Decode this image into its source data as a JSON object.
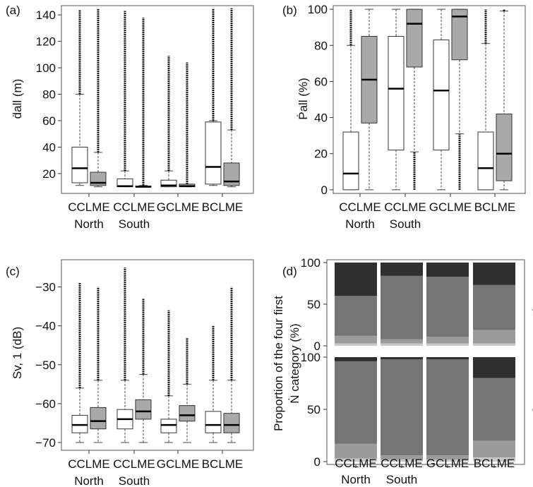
{
  "chart_data": [
    {
      "type": "box",
      "panel_label": "(a)",
      "ylabel": "ḋall (m)",
      "ylim": [
        5,
        147
      ],
      "yticks": [
        "20",
        "40",
        "60",
        "80",
        "100",
        "120",
        "140"
      ],
      "yticks_values": [
        20,
        40,
        60,
        80,
        100,
        120,
        140
      ],
      "categories": [
        [
          "CCLME",
          "North"
        ],
        [
          "CCLME",
          "South"
        ],
        [
          "GCLME",
          ""
        ],
        [
          "BCLME",
          ""
        ]
      ],
      "fills": [
        "#ffffff",
        "#a9a9a9"
      ],
      "boxes": [
        {
          "group": 0,
          "fill": 0,
          "min": 11,
          "q1": 13,
          "median": 24,
          "q3": 40,
          "max": 80,
          "outliers": [
            80,
            144
          ]
        },
        {
          "group": 0,
          "fill": 1,
          "min": 10,
          "q1": 11,
          "median": 13,
          "q3": 21,
          "max": 36,
          "outliers": [
            36,
            145
          ]
        },
        {
          "group": 1,
          "fill": 0,
          "min": 10,
          "q1": 10,
          "median": 10.5,
          "q3": 16,
          "max": 22,
          "outliers": [
            22,
            143
          ]
        },
        {
          "group": 1,
          "fill": 1,
          "min": 10,
          "q1": 10,
          "median": 10,
          "q3": 10.5,
          "max": 11,
          "outliers": [
            11,
            138
          ]
        },
        {
          "group": 2,
          "fill": 0,
          "min": 10,
          "q1": 10,
          "median": 11,
          "q3": 15,
          "max": 22,
          "outliers": [
            22,
            109
          ]
        },
        {
          "group": 2,
          "fill": 1,
          "min": 10,
          "q1": 10,
          "median": 10.5,
          "q3": 12,
          "max": 12,
          "outliers": [
            12,
            104
          ]
        },
        {
          "group": 3,
          "fill": 0,
          "min": 11,
          "q1": 12,
          "median": 25,
          "q3": 59,
          "max": 60,
          "outliers": [
            60,
            145
          ]
        },
        {
          "group": 3,
          "fill": 1,
          "min": 10,
          "q1": 11,
          "median": 14,
          "q3": 28,
          "max": 53,
          "outliers": [
            53,
            145
          ]
        }
      ]
    },
    {
      "type": "box",
      "panel_label": "(b)",
      "ylabel": "Ṗall (%)",
      "ylim": [
        -2,
        102
      ],
      "yticks": [
        "0",
        "20",
        "40",
        "60",
        "80",
        "100"
      ],
      "yticks_values": [
        0,
        20,
        40,
        60,
        80,
        100
      ],
      "categories": [
        [
          "CCLME",
          "North"
        ],
        [
          "CCLME",
          "South"
        ],
        [
          "GCLME",
          ""
        ],
        [
          "BCLME",
          ""
        ]
      ],
      "fills": [
        "#ffffff",
        "#a9a9a9"
      ],
      "boxes": [
        {
          "group": 0,
          "fill": 0,
          "min": 0,
          "q1": 0,
          "median": 9,
          "q3": 32,
          "max": 80,
          "outliers": [
            80,
            100
          ]
        },
        {
          "group": 0,
          "fill": 1,
          "min": 0,
          "q1": 37,
          "median": 61,
          "q3": 85,
          "max": 100,
          "outliers": []
        },
        {
          "group": 1,
          "fill": 0,
          "min": 0,
          "q1": 22,
          "median": 56,
          "q3": 85,
          "max": 100,
          "outliers": []
        },
        {
          "group": 1,
          "fill": 1,
          "min": 21,
          "q1": 68,
          "median": 92,
          "q3": 100,
          "max": 100,
          "outliers": [
            0,
            21
          ]
        },
        {
          "group": 2,
          "fill": 0,
          "min": 0,
          "q1": 22,
          "median": 55,
          "q3": 83,
          "max": 100,
          "outliers": []
        },
        {
          "group": 2,
          "fill": 1,
          "min": 31,
          "q1": 72,
          "median": 96,
          "q3": 100,
          "max": 100,
          "outliers": [
            0,
            31
          ]
        },
        {
          "group": 3,
          "fill": 0,
          "min": 0,
          "q1": 0,
          "median": 12,
          "q3": 32,
          "max": 81,
          "outliers": [
            81,
            100
          ]
        },
        {
          "group": 3,
          "fill": 1,
          "min": 0,
          "q1": 5,
          "median": 20,
          "q3": 42,
          "max": 99,
          "outliers": [
            99,
            100
          ]
        }
      ]
    },
    {
      "type": "box",
      "panel_label": "(c)",
      "ylabel": "Sv, 1 (dB)",
      "ylim": [
        -72,
        -23
      ],
      "yticks": [
        "−30",
        "−40",
        "−50",
        "−60",
        "−70"
      ],
      "yticks_values": [
        -30,
        -40,
        -50,
        -60,
        -70
      ],
      "categories": [
        [
          "CCLME",
          "North"
        ],
        [
          "CCLME",
          "South"
        ],
        [
          "GCLME",
          ""
        ],
        [
          "BCLME",
          ""
        ]
      ],
      "fills": [
        "#ffffff",
        "#a9a9a9"
      ],
      "boxes": [
        {
          "group": 0,
          "fill": 0,
          "min": -70,
          "q1": -67.5,
          "median": -65.5,
          "q3": -63,
          "max": -56,
          "outliers": [
            -56,
            -29
          ]
        },
        {
          "group": 0,
          "fill": 1,
          "min": -70,
          "q1": -66.5,
          "median": -64.5,
          "q3": -61,
          "max": -54,
          "outliers": [
            -54,
            -30
          ]
        },
        {
          "group": 1,
          "fill": 0,
          "min": -70,
          "q1": -66.5,
          "median": -64,
          "q3": -61.5,
          "max": -54,
          "outliers": [
            -54,
            -25
          ]
        },
        {
          "group": 1,
          "fill": 1,
          "min": -70,
          "q1": -64,
          "median": -62,
          "q3": -59,
          "max": -52.5,
          "outliers": [
            -52.5,
            -33
          ]
        },
        {
          "group": 2,
          "fill": 0,
          "min": -70,
          "q1": -67.5,
          "median": -65.5,
          "q3": -64,
          "max": -58,
          "outliers": [
            -58,
            -36
          ]
        },
        {
          "group": 2,
          "fill": 1,
          "min": -70,
          "q1": -64.5,
          "median": -63,
          "q3": -60.5,
          "max": -55,
          "outliers": [
            -55,
            -43
          ]
        },
        {
          "group": 3,
          "fill": 0,
          "min": -70,
          "q1": -67.5,
          "median": -65.5,
          "q3": -62,
          "max": -54,
          "outliers": [
            -54,
            -40
          ]
        },
        {
          "group": 3,
          "fill": 1,
          "min": -70,
          "q1": -67.5,
          "median": -65.5,
          "q3": -62.5,
          "max": -54,
          "outliers": [
            -54,
            -30
          ]
        }
      ]
    },
    {
      "type": "bar",
      "stacked": true,
      "panel_label": "(d)",
      "ylabel_line1": "Proportion of the four first",
      "ylabel_line2": "Ṅ category (%)",
      "categories": [
        [
          "CCLME",
          "North"
        ],
        [
          "CCLME",
          "South"
        ],
        [
          "GCLME",
          ""
        ],
        [
          "BCLME",
          ""
        ]
      ],
      "yticks": [
        "0",
        "50",
        "100"
      ],
      "yticks_values": [
        0,
        50,
        100
      ],
      "layer_colors": [
        "#c8c8c8",
        "#9b9b9b",
        "#757575",
        "#2f2f2f"
      ],
      "facets": [
        {
          "label": "Day",
          "layers": [
            [
              3,
              3,
              3,
              3
            ],
            [
              9,
              5,
              8,
              16
            ],
            [
              48,
              76,
              72,
              54
            ],
            [
              40,
              16,
              17,
              27
            ]
          ]
        },
        {
          "label": "Night",
          "layers": [
            [
              3,
              2,
              2,
              4
            ],
            [
              14,
              4,
              4,
              16
            ],
            [
              79,
              92,
              92,
              60
            ],
            [
              4,
              2,
              2,
              20
            ]
          ]
        }
      ]
    }
  ]
}
